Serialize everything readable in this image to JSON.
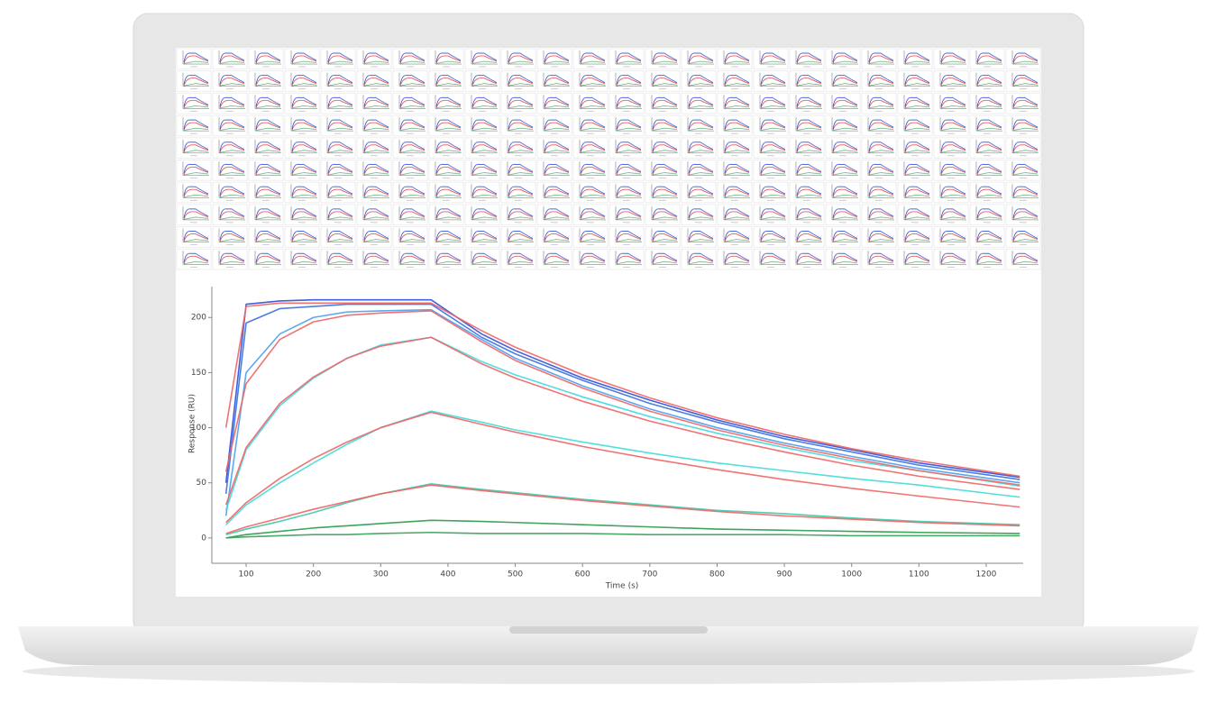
{
  "chart_data": {
    "type": "line",
    "x_label": "Time (s)",
    "y_label": "Response (RU)",
    "xlim": [
      49,
      1255
    ],
    "ylim": [
      -23,
      228
    ],
    "xticks": [
      100,
      200,
      300,
      400,
      500,
      600,
      700,
      800,
      900,
      1000,
      1100,
      1200
    ],
    "yticks": [
      0,
      50,
      100,
      150,
      200
    ],
    "x": [
      70,
      100,
      150,
      200,
      250,
      300,
      375,
      450,
      500,
      600,
      700,
      800,
      900,
      1000,
      1100,
      1250
    ],
    "series": [
      {
        "color": "#2b4fd8",
        "values": [
          50,
          212,
          215,
          216,
          216,
          216,
          216,
          185,
          170,
          145,
          125,
          107,
          92,
          80,
          68,
          55
        ]
      },
      {
        "color": "#3a6fe0",
        "values": [
          40,
          195,
          208,
          210,
          212,
          212,
          212,
          182,
          167,
          143,
          122,
          105,
          90,
          78,
          66,
          53
        ]
      },
      {
        "color": "#4aa0ee",
        "values": [
          20,
          150,
          185,
          200,
          205,
          206,
          207,
          180,
          163,
          138,
          117,
          100,
          86,
          74,
          63,
          50
        ]
      },
      {
        "color": "#3fd8e0",
        "values": [
          25,
          80,
          120,
          145,
          163,
          175,
          182,
          160,
          148,
          128,
          110,
          95,
          82,
          70,
          61,
          47
        ]
      },
      {
        "color": "#40dcd8",
        "values": [
          12,
          30,
          50,
          68,
          85,
          100,
          115,
          105,
          98,
          87,
          77,
          68,
          61,
          54,
          48,
          37
        ]
      },
      {
        "color": "#3cc8a8",
        "values": [
          3,
          8,
          15,
          23,
          32,
          40,
          49,
          44,
          41,
          35,
          30,
          25,
          22,
          18,
          15,
          12
        ]
      },
      {
        "color": "#2a9a4a",
        "values": [
          0,
          3,
          6,
          9,
          11,
          13,
          16,
          15,
          14,
          12,
          10,
          8,
          7,
          6,
          5,
          4
        ]
      },
      {
        "color": "#3aa05a",
        "values": [
          0,
          1,
          2,
          3,
          3,
          4,
          5,
          4,
          4,
          4,
          3,
          3,
          3,
          2,
          2,
          2
        ]
      },
      {
        "color": "#f06464",
        "values": [
          100,
          210,
          213,
          213,
          213,
          213,
          213,
          188,
          173,
          148,
          127,
          109,
          94,
          81,
          70,
          56
        ]
      },
      {
        "color": "#f06464",
        "values": [
          60,
          140,
          180,
          196,
          202,
          204,
          206,
          178,
          161,
          136,
          115,
          98,
          84,
          72,
          61,
          48
        ]
      },
      {
        "color": "#f06464",
        "values": [
          30,
          82,
          122,
          146,
          163,
          174,
          182,
          158,
          145,
          124,
          106,
          91,
          78,
          66,
          56,
          44
        ]
      },
      {
        "color": "#f06464",
        "values": [
          14,
          32,
          54,
          72,
          87,
          100,
          114,
          103,
          96,
          83,
          72,
          62,
          53,
          45,
          38,
          28
        ]
      },
      {
        "color": "#f06464",
        "values": [
          4,
          10,
          18,
          26,
          33,
          40,
          48,
          43,
          40,
          34,
          29,
          24,
          20,
          17,
          14,
          11
        ]
      }
    ]
  }
}
